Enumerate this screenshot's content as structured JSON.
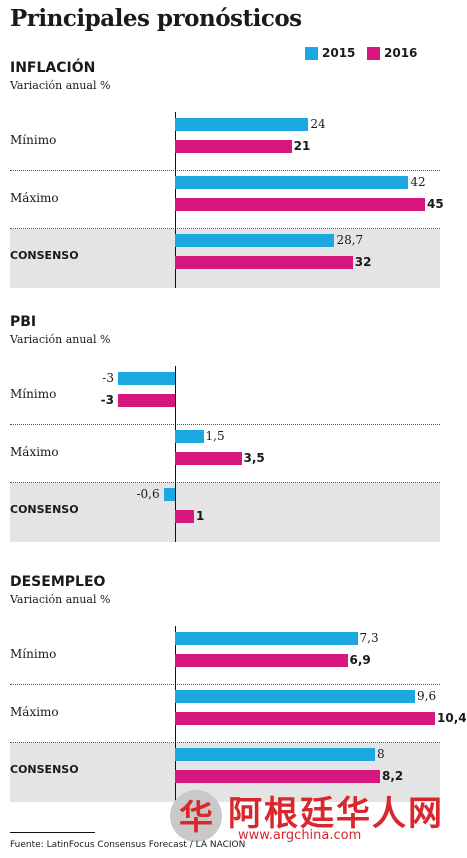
{
  "title": "Principales pronósticos",
  "legend": [
    {
      "label": "2015",
      "color": "#1ba8e0"
    },
    {
      "label": "2016",
      "color": "#d6177e"
    }
  ],
  "chart_data": [
    {
      "type": "bar",
      "title": "INFLACIÓN",
      "subtitle": "Variación anual %",
      "categories": [
        "Mínimo",
        "Máximo",
        "CONSENSO"
      ],
      "series": [
        {
          "name": "2015",
          "values": [
            24,
            42,
            28.7
          ],
          "labels": [
            "24",
            "42",
            "28,7"
          ]
        },
        {
          "name": "2016",
          "values": [
            21,
            45,
            32
          ],
          "labels": [
            "21",
            "45",
            "32"
          ]
        }
      ],
      "xlim": [
        0,
        45
      ]
    },
    {
      "type": "bar",
      "title": "PBI",
      "subtitle": "Variación anual %",
      "categories": [
        "Mínimo",
        "Máximo",
        "CONSENSO"
      ],
      "series": [
        {
          "name": "2015",
          "values": [
            -3,
            1.5,
            -0.6
          ],
          "labels": [
            "-3",
            "1,5",
            "-0,6"
          ]
        },
        {
          "name": "2016",
          "values": [
            -3,
            3.5,
            1
          ],
          "labels": [
            "-3",
            "3,5",
            "1"
          ]
        }
      ],
      "xlim": [
        -3,
        3.5
      ]
    },
    {
      "type": "bar",
      "title": "DESEMPLEO",
      "subtitle": "Variación anual %",
      "categories": [
        "Mínimo",
        "Máximo",
        "CONSENSO"
      ],
      "series": [
        {
          "name": "2015",
          "values": [
            7.3,
            9.6,
            8
          ],
          "labels": [
            "7,3",
            "9,6",
            "8"
          ]
        },
        {
          "name": "2016",
          "values": [
            6.9,
            10.4,
            8.2
          ],
          "labels": [
            "6,9",
            "10,4",
            "8,2"
          ]
        }
      ],
      "xlim": [
        0,
        10.4
      ]
    }
  ],
  "source": "Fuente: LatinFocus Consensus Forecast / LA NACION",
  "watermark": {
    "text": "阿根廷华人网",
    "url": "www.argchina.com",
    "logo_glyph": "华"
  }
}
